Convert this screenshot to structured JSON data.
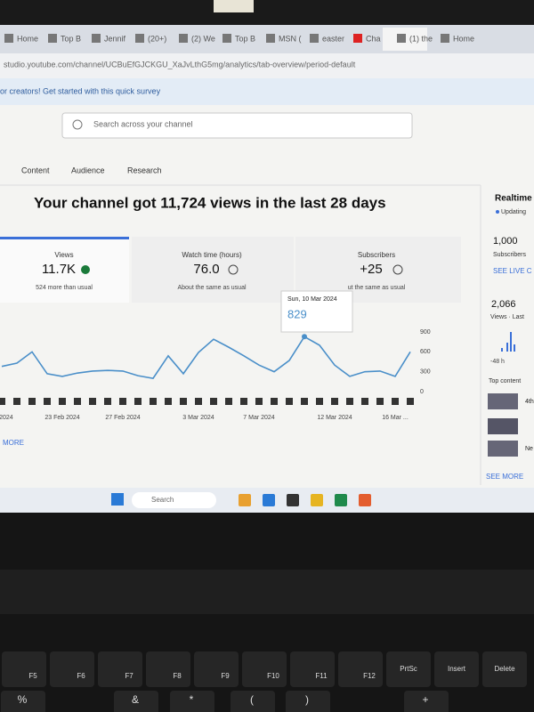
{
  "browser": {
    "tabs": [
      "Home",
      "Top B",
      "Jennif",
      "(20+)",
      "(2) We",
      "Top B",
      "MSN (",
      "easter",
      "Cha",
      "(1) the",
      "Home"
    ],
    "url": "studio.youtube.com/channel/UCBuEfGJCKGU_XaJvLthG5mg/analytics/tab-overview/period-default"
  },
  "banner": "or creators! Get started with this quick survey",
  "search_placeholder": "Search across your channel",
  "nav": [
    "Content",
    "Audience",
    "Research"
  ],
  "headline": "Your channel got 11,724 views in the last 28 days",
  "cards": [
    {
      "label": "Views",
      "value": "11.7K",
      "note": "524 more than usual"
    },
    {
      "label": "Watch time (hours)",
      "value": "76.0",
      "note": "About the same as usual"
    },
    {
      "label": "Subscribers",
      "value": "+25",
      "note": "ut the same as usual"
    }
  ],
  "more_link": "MORE",
  "realtime": {
    "title": "Realtime",
    "status": "Updating",
    "subscribers": "1,000",
    "subscribers_label": "Subscribers",
    "live_link": "SEE LIVE C",
    "views": "2,066",
    "views_label": "Views · Last",
    "period": "-48 h",
    "top_content": "Top content",
    "items": [
      "4th",
      "Ne"
    ],
    "more": "SEE MORE"
  },
  "taskbar": {
    "search": "Search"
  },
  "keyboard": {
    "fn_keys": [
      "F5",
      "F6",
      "F7",
      "F8",
      "F9",
      "F10",
      "F11",
      "F12",
      "PrtSc",
      "Insert",
      "Delete"
    ],
    "bottom_keys": [
      "%",
      "&",
      "*",
      "(",
      ")",
      "+"
    ]
  },
  "chart_data": {
    "type": "line",
    "color": "#4a8fc9",
    "categories": [
      "eb 2024",
      null,
      null,
      null,
      "23 Feb 2024",
      null,
      null,
      null,
      "27 Feb 2024",
      null,
      null,
      null,
      null,
      "3 Mar 2024",
      null,
      null,
      null,
      "7 Mar 2024",
      null,
      null,
      null,
      null,
      "12 Mar 2024",
      null,
      null,
      null,
      "16 Mar ...",
      null
    ],
    "values": [
      380,
      430,
      600,
      270,
      230,
      280,
      310,
      320,
      310,
      240,
      200,
      540,
      270,
      590,
      790,
      670,
      540,
      400,
      300,
      470,
      829,
      700,
      400,
      230,
      300,
      310,
      230,
      600
    ],
    "ylim": [
      0,
      900
    ],
    "yticks": [
      0,
      300,
      600,
      900
    ],
    "tooltip_title": "Sun, 10 Mar 2024",
    "tooltip_index": 20
  }
}
